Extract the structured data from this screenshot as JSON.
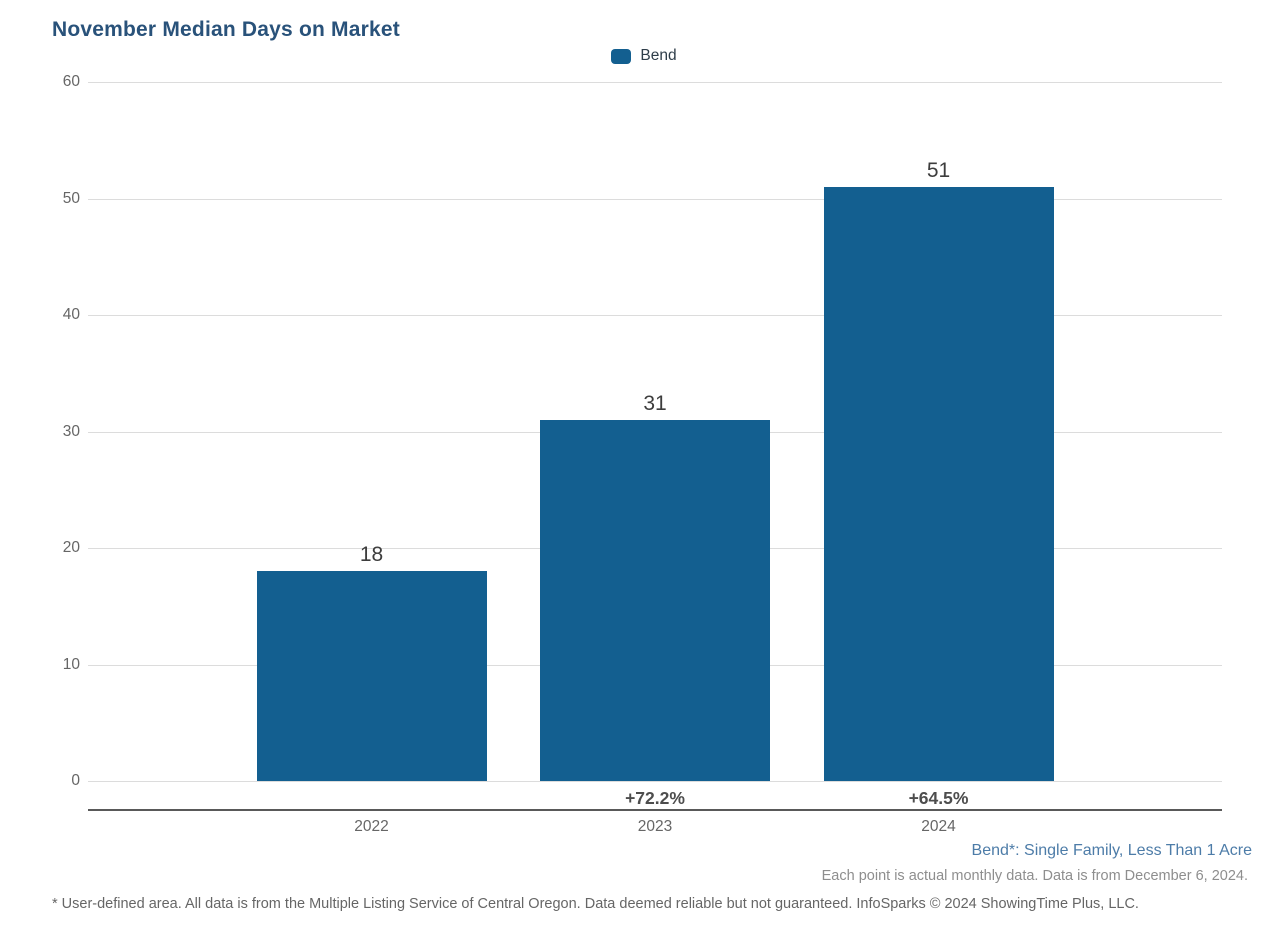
{
  "chart_data": {
    "type": "bar",
    "title": "November Median Days on Market",
    "categories": [
      "2022",
      "2023",
      "2024"
    ],
    "series": [
      {
        "name": "Bend",
        "values": [
          18,
          31,
          51
        ]
      }
    ],
    "bar_value_labels": [
      "18",
      "31",
      "51"
    ],
    "pct_change_labels": [
      "",
      "+72.2%",
      "+64.5%"
    ],
    "ylim": [
      0,
      60
    ],
    "yticks": [
      0,
      10,
      20,
      30,
      40,
      50,
      60
    ],
    "grid": "horizontal",
    "legend": [
      "Bend"
    ],
    "legend_position": "top-center",
    "colors": {
      "bar": "#135f90",
      "title": "#29527a",
      "series_note": "#4d7ca8"
    }
  },
  "footer": {
    "series_note": "Bend*: Single Family, Less Than 1 Acre",
    "data_note": "Each point is actual monthly data. Data is from December 6, 2024.",
    "disclaimer": "* User-defined area. All data is from the Multiple Listing Service of Central Oregon. Data deemed reliable but not guaranteed. InfoSparks © 2024 ShowingTime Plus, LLC."
  }
}
